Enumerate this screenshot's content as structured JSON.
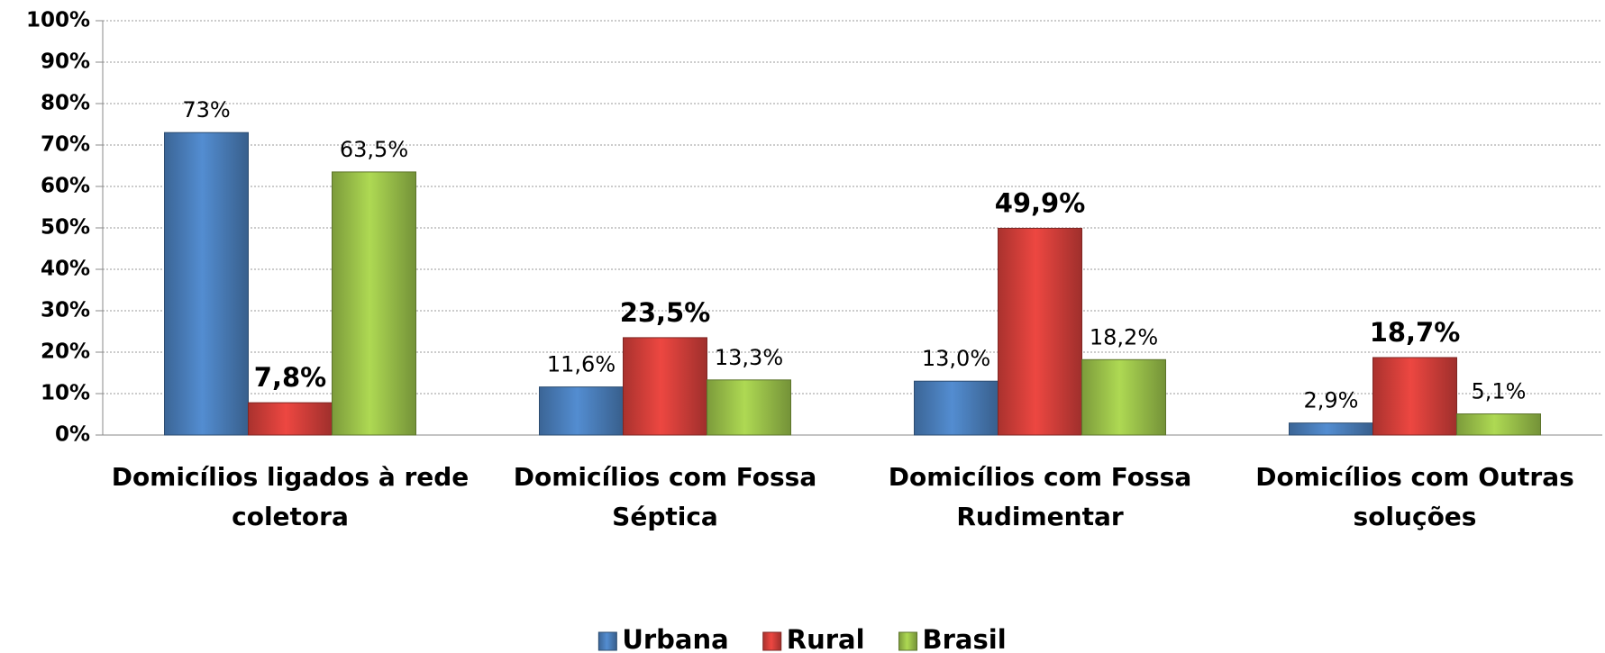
{
  "chart_data": {
    "type": "bar",
    "categories": [
      "Domicílios ligados à rede coletora",
      "Domicílios  com Fossa Séptica",
      "Domicílios com Fossa Rudimentar",
      "Domicílios com Outras soluções"
    ],
    "series": [
      {
        "name": "Urbana",
        "color": "#4a7ebb",
        "label_bold": false,
        "values": [
          73,
          11.6,
          13.0,
          2.9
        ],
        "value_labels": [
          "73%",
          "11,6%",
          "13,0%",
          "2,9%"
        ]
      },
      {
        "name": "Rural",
        "color": "#d43f3a",
        "label_bold": true,
        "values": [
          7.8,
          23.5,
          49.9,
          18.7
        ],
        "value_labels": [
          "7,8%",
          "23,5%",
          "49,9%",
          "18,7%"
        ]
      },
      {
        "name": "Brasil",
        "color": "#9bc24a",
        "label_bold": false,
        "values": [
          63.5,
          13.3,
          18.2,
          5.1
        ],
        "value_labels": [
          "63,5%",
          "13,3%",
          "18,2%",
          "5,1%"
        ]
      }
    ],
    "ylim": [
      0,
      100
    ],
    "yticks": [
      {
        "value": 0,
        "label": "0%"
      },
      {
        "value": 10,
        "label": "10%"
      },
      {
        "value": 20,
        "label": "20%"
      },
      {
        "value": 30,
        "label": "30%"
      },
      {
        "value": 40,
        "label": "40%"
      },
      {
        "value": 50,
        "label": "50%"
      },
      {
        "value": 60,
        "label": "60%"
      },
      {
        "value": 70,
        "label": "70%"
      },
      {
        "value": 80,
        "label": "80%"
      },
      {
        "value": 90,
        "label": "90%"
      },
      {
        "value": 100,
        "label": "100%"
      }
    ],
    "grid": true,
    "legend": "bottom"
  }
}
